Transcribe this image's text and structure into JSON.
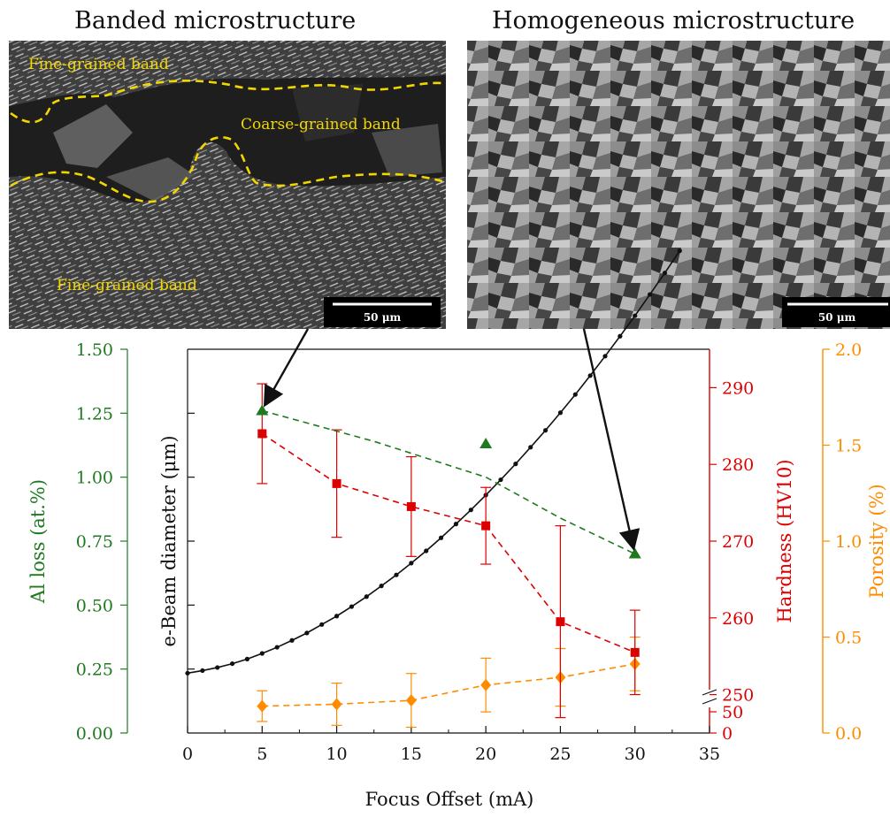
{
  "panels": {
    "banded": {
      "title": "Banded microstructure",
      "labels": [
        "Fine-grained band",
        "Coarse-grained band",
        "Fine-grained band"
      ],
      "scale_bar": "50 μm"
    },
    "homogeneous": {
      "title": "Homogeneous microstructure",
      "scale_bar": "50 μm"
    }
  },
  "colors": {
    "al_loss": "#1f7a1f",
    "hardness": "#dd0000",
    "porosity": "#ff8c00",
    "beam": "#111111",
    "annotation": "#f2d600"
  },
  "chart_data": {
    "type": "line",
    "xlabel": "Focus Offset (mA)",
    "xlim": [
      0,
      35
    ],
    "xticks": [
      "0",
      "5",
      "10",
      "15",
      "20",
      "25",
      "30",
      "35"
    ],
    "axes": {
      "al_loss": {
        "label": "Al loss (at.%)",
        "range": [
          0,
          1.5
        ],
        "ticks": [
          "0.00",
          "0.25",
          "0.50",
          "0.75",
          "1.00",
          "1.25",
          "1.50"
        ]
      },
      "beam": {
        "label": "e-Beam diameter (μm)"
      },
      "hardness": {
        "label": "Hardness (HV10)",
        "range": [
          245,
          295
        ],
        "ticks": [
          "250",
          "260",
          "270",
          "280",
          "290"
        ],
        "broken_ticks": [
          "0",
          "50"
        ]
      },
      "porosity": {
        "label": "Porosity (%)",
        "range": [
          0,
          2.0
        ],
        "ticks": [
          "0.0",
          "0.5",
          "1.0",
          "1.5",
          "2.0"
        ]
      }
    },
    "series": [
      {
        "x": [
          5,
          20,
          30
        ],
        "y": [
          1.26,
          1.13,
          0.7
        ],
        "fit_y": [
          1.26,
          1.14,
          1.0,
          0.84,
          0.7
        ]
      },
      {
        "x": [
          5,
          10,
          15,
          20,
          25,
          30
        ],
        "y": [
          284.0,
          277.5,
          274.5,
          272.0,
          259.5,
          255.5
        ],
        "err": [
          6.5,
          7.0,
          6.5,
          5.0,
          12.5,
          5.5
        ]
      },
      {
        "x": [
          5,
          10,
          15,
          20,
          25,
          30
        ],
        "y": [
          0.14,
          0.15,
          0.17,
          0.25,
          0.29,
          0.36
        ],
        "err": [
          0.08,
          0.11,
          0.14,
          0.14,
          0.15,
          0.14
        ]
      },
      {
        "x": [
          0,
          1,
          2,
          3,
          4,
          5,
          6,
          7,
          8,
          9,
          10,
          11,
          12,
          13,
          14,
          15,
          16,
          17,
          18,
          19,
          20,
          21,
          22,
          23,
          24,
          25,
          26,
          27,
          28,
          29,
          30,
          31,
          32,
          33
        ],
        "y": [
          0.234,
          0.244,
          0.256,
          0.271,
          0.289,
          0.311,
          0.335,
          0.362,
          0.391,
          0.424,
          0.457,
          0.494,
          0.533,
          0.575,
          0.618,
          0.664,
          0.712,
          0.763,
          0.817,
          0.872,
          0.93,
          0.99,
          1.052,
          1.117,
          1.183,
          1.252,
          1.323,
          1.397,
          1.473,
          1.551,
          1.631,
          1.714,
          1.798,
          1.885
        ]
      }
    ]
  }
}
